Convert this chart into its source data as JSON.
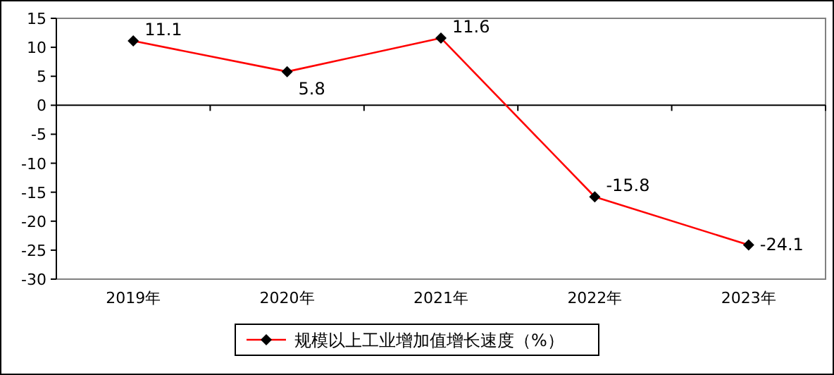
{
  "chart_data": {
    "type": "line",
    "categories": [
      "2019年",
      "2020年",
      "2021年",
      "2022年",
      "2023年"
    ],
    "series": [
      {
        "name": "规模以上工业增加值增长速度（%）",
        "color": "#ff0000",
        "values": [
          11.1,
          5.8,
          11.6,
          -15.8,
          -24.1
        ]
      }
    ],
    "ylim": [
      -30,
      15
    ],
    "yticks": [
      -30,
      -25,
      -20,
      -15,
      -10,
      -5,
      0,
      5,
      10,
      15
    ],
    "data_labels": true,
    "marker": "diamond",
    "line_style": "solid",
    "legend": "bottom"
  }
}
